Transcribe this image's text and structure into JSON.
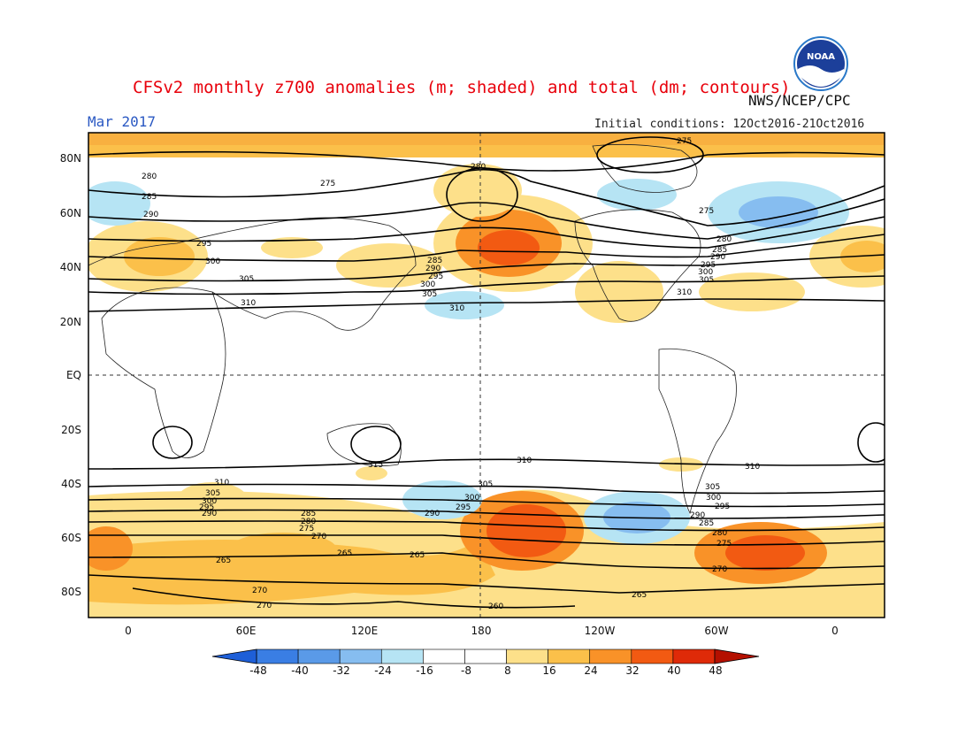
{
  "header": {
    "title": "CFSv2 monthly z700 anomalies (m; shaded) and total (dm; contours)",
    "month": "Mar 2017",
    "agency": "NWS/NCEP/CPC",
    "initial_conditions": "Initial conditions: 12Oct2016-21Oct2016",
    "logo_text": "NOAA"
  },
  "axes": {
    "lat_ticks": [
      "80N",
      "60N",
      "40N",
      "20N",
      "EQ",
      "20S",
      "40S",
      "60S",
      "80S"
    ],
    "lon_ticks": [
      "0",
      "60E",
      "120E",
      "180",
      "120W",
      "60W",
      "0"
    ]
  },
  "contour_labels": [
    "275",
    "280",
    "285",
    "290",
    "295",
    "300",
    "305",
    "310",
    "315",
    "265",
    "270",
    "260"
  ],
  "colorbar": {
    "labels": [
      "-48",
      "-40",
      "-32",
      "-24",
      "-16",
      "-8",
      "8",
      "16",
      "24",
      "32",
      "40",
      "48"
    ],
    "colors": [
      "#1e5fd8",
      "#3a7ee4",
      "#5a9ae8",
      "#86bdf0",
      "#b6e4f4",
      "#ffffff",
      "#fde08a",
      "#fbc04a",
      "#f99228",
      "#f25a12",
      "#df2a08",
      "#b41000"
    ]
  },
  "colors": {
    "title": "#e8000b",
    "month": "#2b59c3",
    "contour": "#000000"
  }
}
